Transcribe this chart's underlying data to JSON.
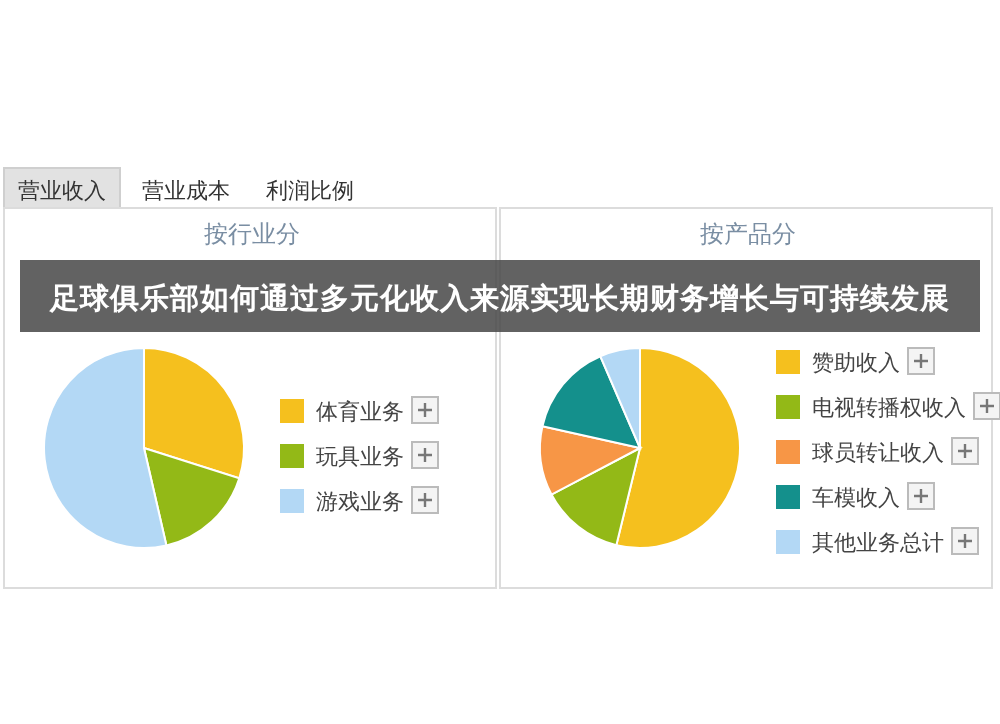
{
  "chart_data": [
    {
      "type": "pie",
      "title": "按行业分",
      "categories": [
        "体育业务",
        "玩具业务",
        "游戏业务"
      ],
      "values": [
        29.9,
        16.5,
        53.6
      ],
      "colors": [
        "#f5c01e",
        "#93b917",
        "#b3d8f5"
      ],
      "legend": "right",
      "annotations": [
        "营业收入",
        "营业成本",
        "利润比例",
        "足球俱乐部如何通过多元化收入来源实现长期财务增长与可持续发展"
      ]
    },
    {
      "type": "pie",
      "title": "按产品分",
      "categories": [
        "赞助收入",
        "电视转播权收入",
        "球员转让收入",
        "车模收入",
        "其他业务总计"
      ],
      "values": [
        53.8,
        13.5,
        11.2,
        15,
        6.5
      ],
      "colors": [
        "#f5c01e",
        "#93b917",
        "#f79646",
        "#14908c",
        "#b3d8f5"
      ],
      "legend": "right"
    }
  ]
}
